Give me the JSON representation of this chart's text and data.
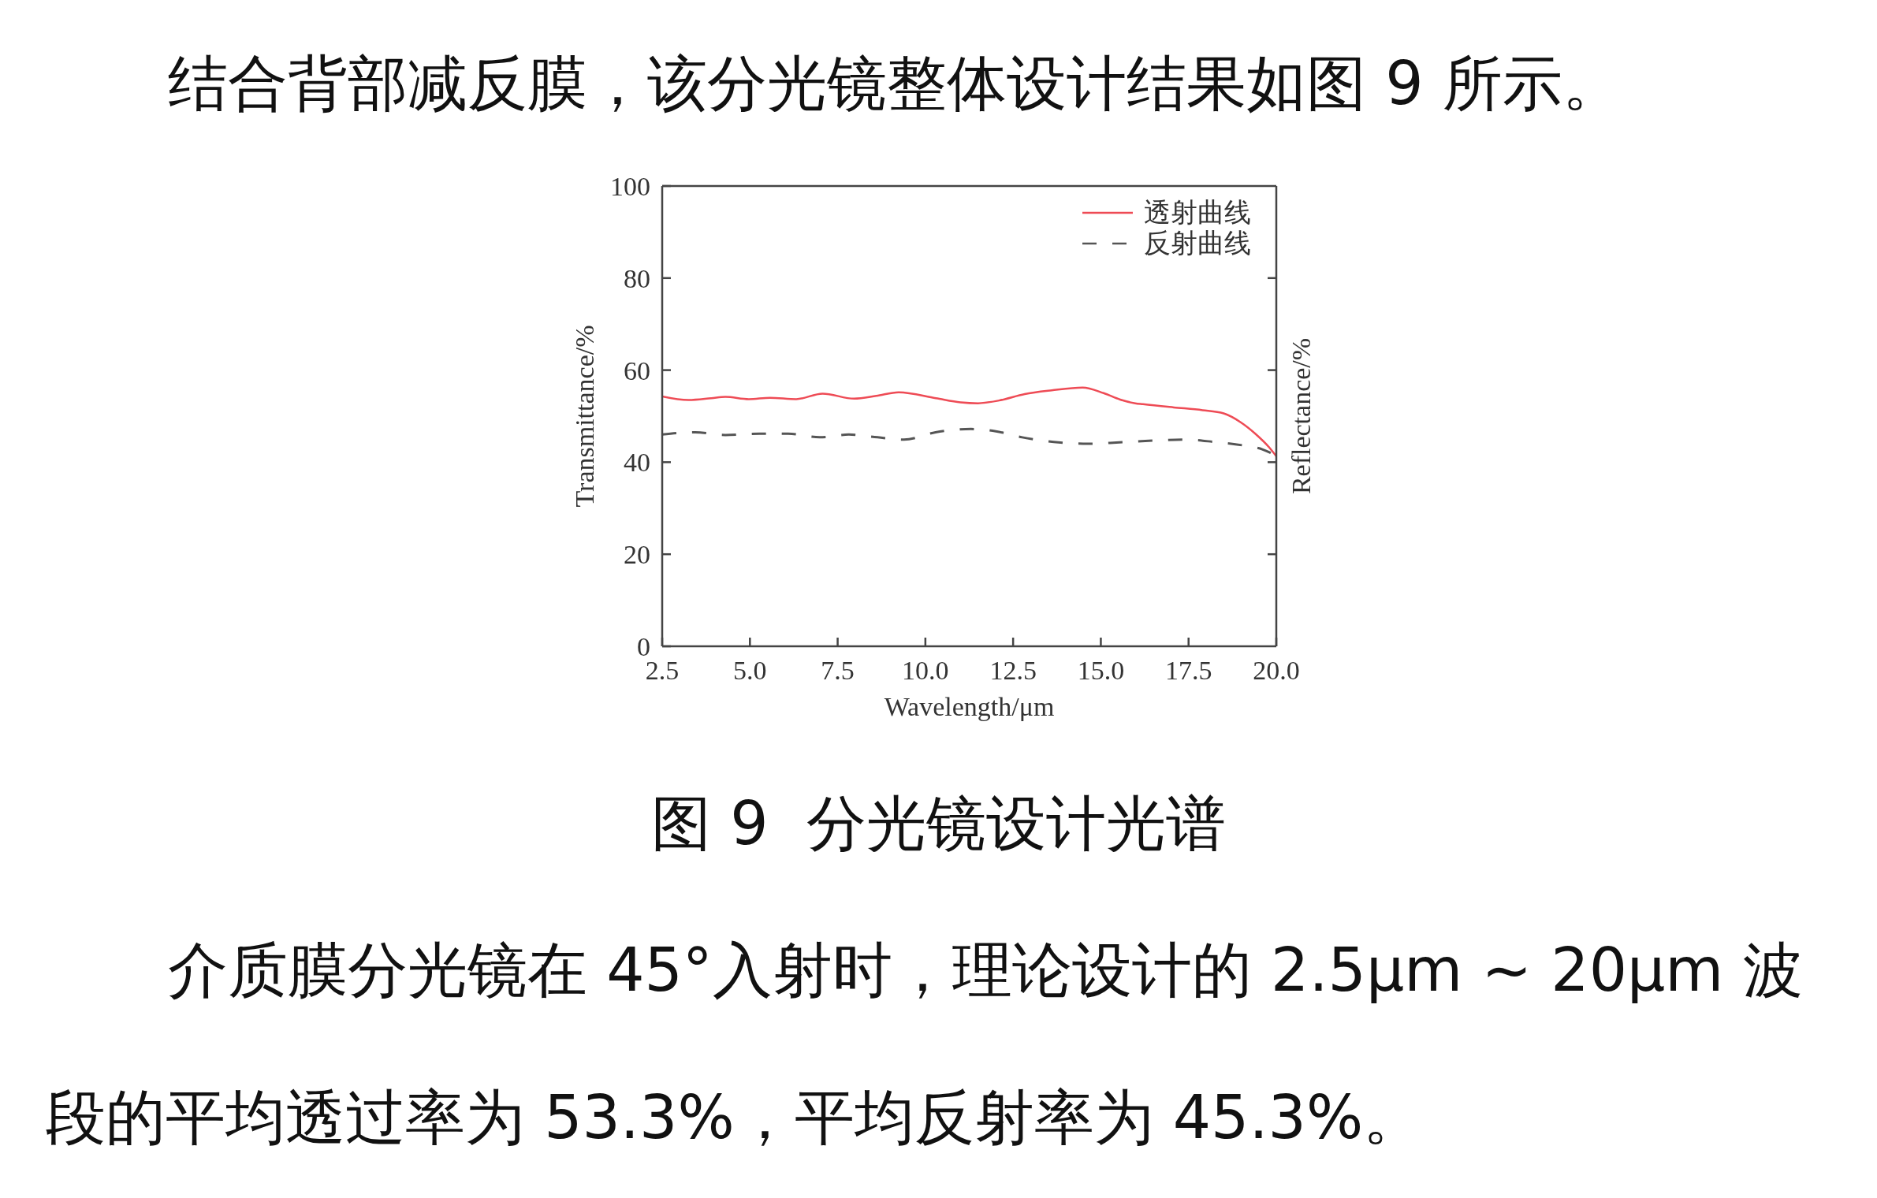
{
  "chart_data": {
    "type": "line",
    "title": "图 9  分光镜设计光谱",
    "xlabel": "Wavelength/μm",
    "ylabel": "Transmittance/%",
    "y2label": "Reflectance/%",
    "annotations": [
      "结合背部减反膜，该分光镜整体设计结果如图 9 所示。",
      "介质膜分光镜在 45°入射时，理论设计的 2.5μm ~ 20μm 波段的平均透过率为 53.3%，平均反射率为 45.3%。"
    ],
    "xlim": [
      2.5,
      20
    ],
    "xticks": [
      2.5,
      {
        "value": 5,
        "label": "5.0"
      },
      7.5,
      {
        "value": 10,
        "label": "10.0"
      },
      12.5,
      {
        "value": 15,
        "label": "15.0"
      },
      17.5,
      {
        "value": 20,
        "label": "20.0"
      }
    ],
    "ylim": [
      0,
      100
    ],
    "yticks": [
      0,
      20,
      40,
      60,
      80,
      100
    ],
    "legend": "top right",
    "marker": "none",
    "series": [
      {
        "name": "透射曲线",
        "color": "#ee4b55",
        "line_style": "solid",
        "x": [
          2.5,
          3.25,
          3.9,
          4.3,
          4.97,
          5.57,
          6.32,
          7.07,
          7.97,
          8.6,
          9.24,
          10.3,
          11.0,
          11.5,
          12.1,
          12.83,
          13.6,
          14.48,
          15.08,
          15.55,
          15.98,
          16.2,
          17.08,
          17.9,
          18.5,
          19.0,
          19.4,
          19.8,
          20.0
        ],
        "values": [
          54.3,
          53.5,
          53.9,
          54.2,
          53.7,
          54.0,
          53.7,
          54.9,
          53.8,
          54.4,
          55.2,
          53.9,
          53.0,
          52.8,
          53.4,
          54.8,
          55.6,
          56.2,
          55.0,
          53.6,
          52.8,
          52.6,
          51.9,
          51.3,
          50.6,
          48.6,
          46.2,
          43.2,
          41.3
        ]
      },
      {
        "name": "反射曲线",
        "color": "#555555",
        "line_style": "dashed",
        "x": [
          2.5,
          3.44,
          4.3,
          5.27,
          6.09,
          6.99,
          7.82,
          8.64,
          9.39,
          10.29,
          11.3,
          12.01,
          12.76,
          13.66,
          14.63,
          15.53,
          16.5,
          17.4,
          18.23,
          19.09,
          19.6,
          20.0
        ],
        "values": [
          46.0,
          46.5,
          45.9,
          46.2,
          46.2,
          45.4,
          46.0,
          45.4,
          44.9,
          46.5,
          47.2,
          46.7,
          45.4,
          44.4,
          44.0,
          44.3,
          44.7,
          44.9,
          44.4,
          43.6,
          42.8,
          41.4
        ]
      }
    ]
  }
}
